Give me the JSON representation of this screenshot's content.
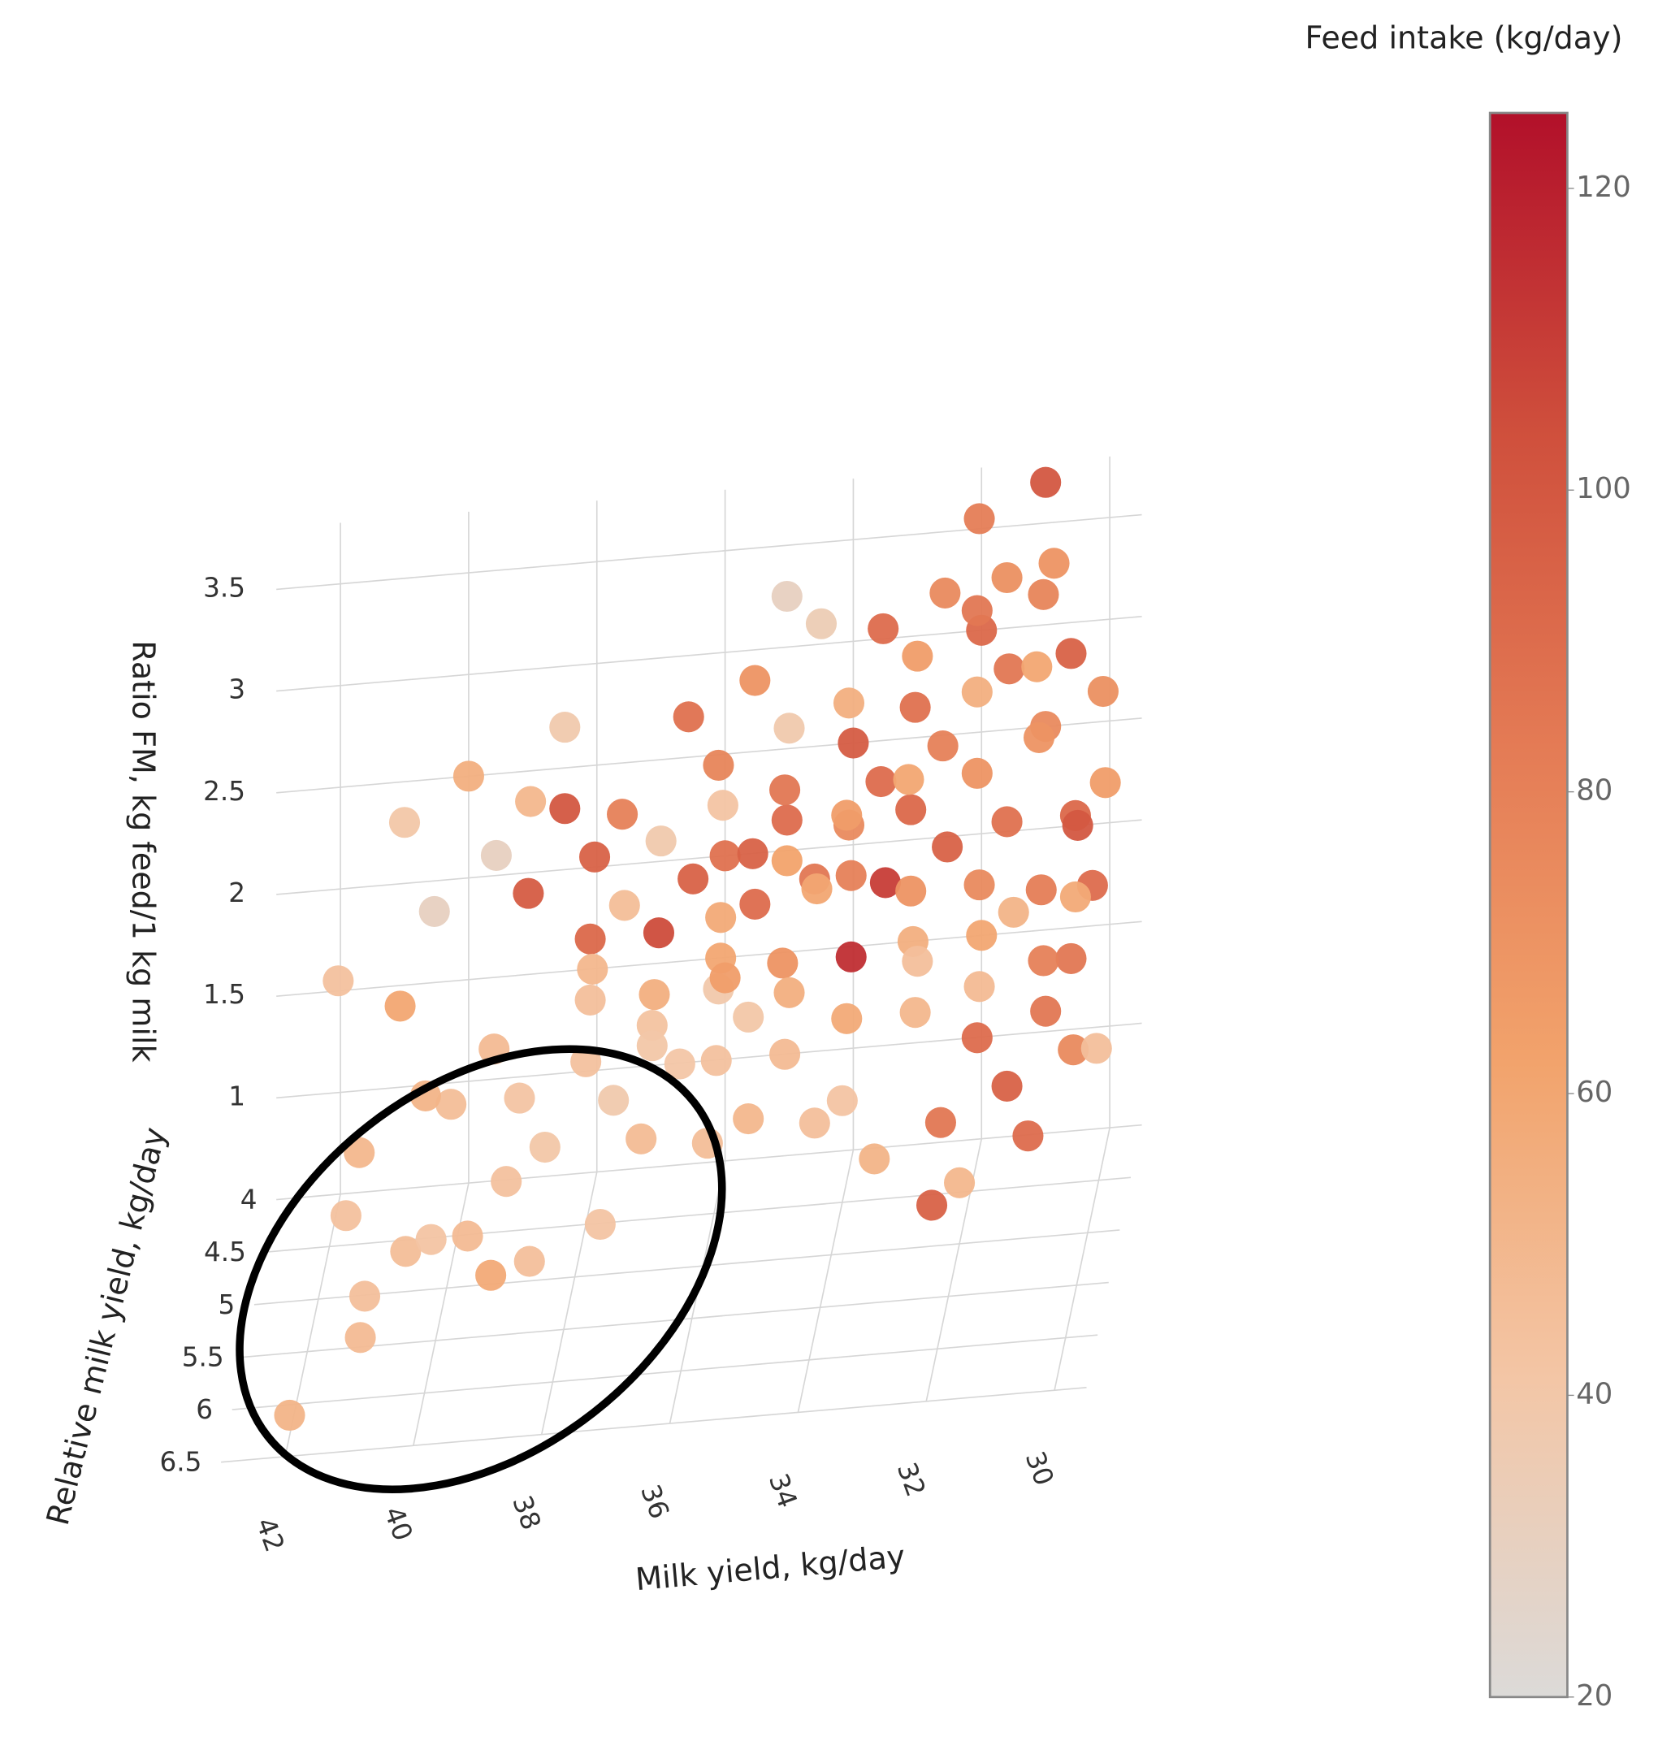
{
  "chart_data": {
    "type": "scatter3d",
    "colorbar_title": "Feed intake (kg/day)",
    "x_label": "Milk yield, kg/day",
    "y_label": "Relative milk yield, kg/day",
    "z_label": "Ratio FM, kg feed/1 kg milk",
    "xlim": [
      43,
      29.5
    ],
    "xticks": [
      42,
      40,
      38,
      36,
      34,
      32,
      30
    ],
    "ylim": [
      4,
      6.5
    ],
    "yticks": [
      4,
      4.5,
      5,
      5.5,
      6,
      6.5
    ],
    "zlim": [
      0.5,
      3.8
    ],
    "zticks": [
      1,
      1.5,
      2,
      2.5,
      3,
      3.5
    ],
    "clim": [
      20,
      125
    ],
    "cticks": [
      20,
      40,
      60,
      80,
      100,
      120
    ],
    "colorscale": [
      "#dcdad8",
      "#f3c6a6",
      "#f2a36c",
      "#e47b55",
      "#cf4f3c",
      "#b2102a"
    ],
    "grid": true,
    "x": [
      42,
      41,
      41,
      41.5,
      40.5,
      40,
      39.5,
      39,
      40,
      39,
      38.5,
      38,
      37.5,
      37,
      36.5,
      38,
      37,
      36,
      39.5,
      40.5,
      41,
      42,
      41.5,
      36,
      38.5,
      37.5,
      35.5,
      39,
      40.5,
      41,
      36,
      35.5,
      35,
      34.5,
      34,
      33.5,
      33,
      32.5,
      32,
      31.5,
      31,
      30.5,
      31,
      32,
      30.8,
      33,
      34,
      35,
      36,
      37,
      37.5,
      36.5,
      35.5,
      34.5,
      33.5,
      32.5,
      31.5,
      31,
      30.5,
      30.2,
      30.5,
      31,
      32,
      33,
      34,
      35,
      36,
      35,
      34,
      33,
      32,
      31,
      30.5,
      31.5,
      32.5,
      33.5,
      34.5,
      35.5,
      30,
      31,
      32,
      32.5,
      34,
      33,
      32,
      35,
      36,
      35.5,
      34.5,
      33.5,
      32.5,
      31.5,
      36.5,
      37.5,
      38,
      38.5,
      39,
      38,
      37,
      36,
      39,
      38.5,
      40,
      39.5,
      34,
      33,
      32,
      31,
      30.5,
      30,
      31,
      32,
      33,
      34,
      35,
      36,
      37,
      38,
      33,
      32,
      31.5,
      30.5,
      35,
      36,
      34,
      37,
      30,
      31,
      32,
      35
    ],
    "y": [
      6.3,
      6,
      5.8,
      5.2,
      5.4,
      5.7,
      5.5,
      5.2,
      4.8,
      4.6,
      4.9,
      4.5,
      4.7,
      4.4,
      4.6,
      4.3,
      4.9,
      4.3,
      4.3,
      4.5,
      4.2,
      4.1,
      4.6,
      4.8,
      5.6,
      5.3,
      4.4,
      5.9,
      4.1,
      4.0,
      4,
      4.2,
      4.1,
      4.3,
      4.0,
      4.2,
      4.1,
      4.3,
      4.0,
      4.2,
      4.1,
      4.3,
      4.0,
      4.1,
      4.2,
      4.0,
      4.2,
      4.0,
      4.1,
      4.0,
      4.2,
      4.0,
      4.1,
      4.2,
      4.0,
      4.1,
      4.3,
      4.0,
      4.1,
      4.2,
      4.3,
      4.1,
      4.0,
      4.2,
      4.1,
      4.3,
      4.2,
      4.0,
      4.3,
      4.1,
      4.2,
      4.0,
      4.2,
      4.3,
      4.4,
      4.5,
      4.3,
      4.4,
      4.6,
      4.8,
      5.0,
      4.8,
      4.2,
      4.3,
      4.2,
      4.2,
      4.3,
      4.1,
      4.0,
      4.1,
      4.2,
      4.3,
      4.2,
      4.3,
      4.1,
      4.0,
      4.2,
      4.3,
      4.1,
      4.0,
      4.1,
      4.0,
      4.0,
      4.2,
      4.1,
      4.3,
      4.1,
      4.2,
      4.0,
      4.2,
      4.3,
      4.2,
      4.4,
      4.3,
      4.1,
      4.2,
      4.3,
      4.2,
      4.0,
      4.1,
      4.0,
      4.1,
      4.2,
      4.4,
      4.5,
      4.4,
      4.3,
      4.4,
      4.2,
      4.1
    ],
    "z": [
      0.6,
      0.8,
      0.9,
      1.0,
      0.9,
      1.1,
      1.0,
      1.1,
      1.3,
      1.2,
      1.1,
      1.3,
      1.2,
      1.4,
      1.3,
      1.5,
      1.1,
      1.5,
      1.3,
      1.2,
      1.5,
      1.6,
      1.0,
      1.0,
      0.9,
      0.9,
      1.4,
      1.0,
      1.9,
      2.3,
      2.0,
      2.1,
      2.2,
      2.0,
      2.5,
      2.4,
      2.7,
      2.6,
      3.0,
      2.9,
      3.2,
      3.0,
      3.7,
      3.6,
      3.4,
      2.9,
      2.8,
      2.6,
      2.3,
      2.1,
      1.9,
      1.9,
      1.8,
      1.9,
      1.8,
      2.0,
      2.2,
      2.5,
      2.1,
      1.8,
      1.5,
      1.4,
      1.5,
      1.6,
      1.5,
      1.6,
      1.6,
      1.3,
      1.3,
      1.2,
      1.1,
      1.1,
      1.0,
      0.9,
      0.8,
      0.7,
      0.8,
      0.9,
      1.2,
      0.9,
      0.8,
      0.6,
      2.2,
      2.3,
      2.4,
      2.4,
      2.6,
      2.9,
      3.1,
      3.1,
      3.3,
      3.4,
      2.8,
      2.4,
      2.1,
      2.3,
      2.0,
      1.8,
      1.7,
      1.4,
      2.4,
      2.7,
      2.5,
      2.2,
      1.9,
      1.9,
      1.8,
      1.8,
      2.0,
      2.3,
      2.6,
      2.8,
      2.5,
      2.3,
      2.0,
      1.8,
      1.5,
      1.6,
      1.4,
      1.3,
      1.6,
      1.7,
      1.1,
      1.2,
      1.0,
      1.3,
      2.8,
      3.0,
      3.2,
      3.3
    ],
    "color_values": [
      52,
      48,
      45,
      44,
      46,
      42,
      48,
      44,
      46,
      42,
      40,
      44,
      38,
      43,
      41,
      45,
      47,
      39,
      48,
      52,
      60,
      44,
      50,
      46,
      45,
      42,
      40,
      58,
      30,
      40,
      88,
      95,
      90,
      85,
      98,
      90,
      88,
      80,
      92,
      85,
      78,
      95,
      100,
      82,
      70,
      65,
      55,
      38,
      42,
      38,
      46,
      95,
      90,
      60,
      110,
      95,
      88,
      75,
      92,
      90,
      85,
      80,
      60,
      55,
      115,
      70,
      60,
      55,
      58,
      50,
      90,
      85,
      75,
      95,
      85,
      52,
      45,
      50,
      45,
      90,
      50,
      95,
      75,
      92,
      70,
      85,
      78,
      70,
      35,
      90,
      75,
      72,
      88,
      80,
      95,
      100,
      98,
      92,
      105,
      65,
      50,
      38,
      55,
      30,
      80,
      70,
      75,
      82,
      100,
      65,
      70,
      55,
      60,
      65,
      62,
      58,
      55,
      50,
      45,
      48,
      52,
      58,
      48,
      44,
      42,
      40,
      72,
      60,
      85,
      30
    ]
  }
}
